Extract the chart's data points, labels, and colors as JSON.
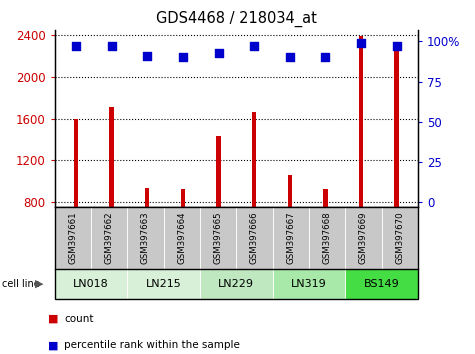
{
  "title": "GDS4468 / 218034_at",
  "samples": [
    "GSM397661",
    "GSM397662",
    "GSM397663",
    "GSM397664",
    "GSM397665",
    "GSM397666",
    "GSM397667",
    "GSM397668",
    "GSM397669",
    "GSM397670"
  ],
  "counts": [
    1595,
    1710,
    930,
    920,
    1430,
    1660,
    1060,
    920,
    2390,
    2330
  ],
  "percentile_ranks": [
    97,
    97,
    91,
    90,
    93,
    97,
    90,
    90,
    99,
    97
  ],
  "cell_lines": [
    {
      "name": "LN018",
      "samples": [
        "GSM397661",
        "GSM397662"
      ],
      "color": "#d8f0d8"
    },
    {
      "name": "LN215",
      "samples": [
        "GSM397663",
        "GSM397664"
      ],
      "color": "#d8f0d8"
    },
    {
      "name": "LN229",
      "samples": [
        "GSM397665",
        "GSM397666"
      ],
      "color": "#c0e8c0"
    },
    {
      "name": "LN319",
      "samples": [
        "GSM397667",
        "GSM397668"
      ],
      "color": "#a8e8a8"
    },
    {
      "name": "BS149",
      "samples": [
        "GSM397669",
        "GSM397670"
      ],
      "color": "#44dd44"
    }
  ],
  "ylim_left": [
    750,
    2450
  ],
  "ylim_right": [
    -3,
    107
  ],
  "yticks_left": [
    800,
    1200,
    1600,
    2000,
    2400
  ],
  "yticks_right": [
    0,
    25,
    50,
    75,
    100
  ],
  "bar_color": "#cc0000",
  "dot_color": "#0000cc",
  "grid_color": "#000000",
  "bg_color": "#ffffff",
  "label_bg_color": "#c8c8c8",
  "bar_width": 0.12
}
